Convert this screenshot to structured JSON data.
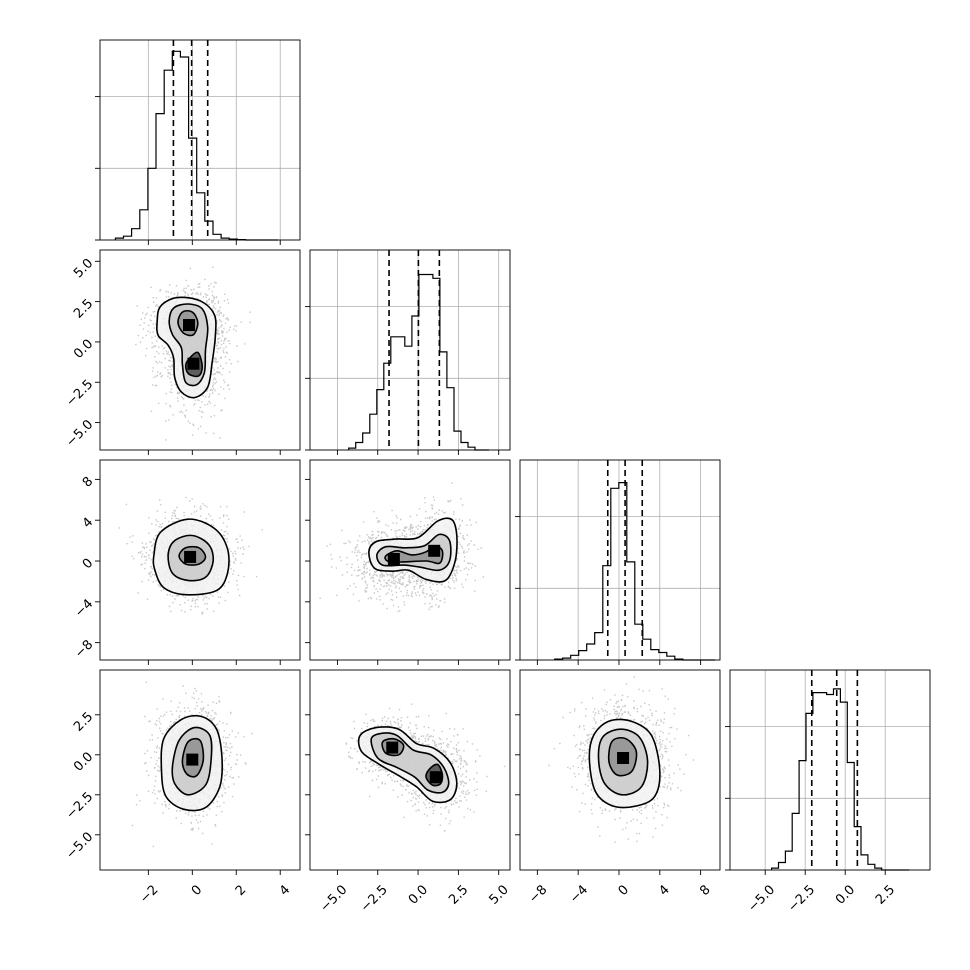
{
  "chart_data": {
    "type": "corner",
    "grid": true,
    "params": [
      {
        "range": [
          -4.2,
          4.9
        ],
        "ticks": [
          -2,
          0,
          2,
          4
        ],
        "tick_labels": [
          "−2",
          "0",
          "2",
          "4"
        ]
      },
      {
        "range": [
          -6.7,
          5.7
        ],
        "ticks": [
          -5.0,
          -2.5,
          0.0,
          2.5,
          5.0
        ],
        "tick_labels": [
          "−5.0",
          "−2.5",
          "0.0",
          "2.5",
          "5.0"
        ]
      },
      {
        "range": [
          -9.7,
          9.9
        ],
        "ticks": [
          -8,
          -4,
          0,
          4,
          8
        ],
        "tick_labels": [
          "−8",
          "−4",
          "0",
          "4",
          "8"
        ]
      },
      {
        "range": [
          -7.2,
          5.3
        ],
        "ticks": [
          -5.0,
          -2.5,
          0.0,
          2.5
        ],
        "tick_labels": [
          "−5.0",
          "−2.5",
          "0.0",
          "2.5"
        ]
      }
    ],
    "histograms": [
      {
        "param": 0,
        "range": [
          -3.5,
          3.9
        ],
        "counts": [
          0.01,
          0.02,
          0.06,
          0.16,
          0.38,
          0.67,
          0.9,
          1.0,
          0.97,
          0.54,
          0.25,
          0.1,
          0.03,
          0.01,
          0.005,
          0.002,
          0.0,
          0.0,
          0.0,
          0.0
        ],
        "quantiles": [
          -0.86,
          -0.03,
          0.7
        ]
      },
      {
        "param": 1,
        "range": [
          -4.3,
          4.4
        ],
        "counts": [
          0.01,
          0.04,
          0.09,
          0.19,
          0.32,
          0.46,
          0.6,
          0.6,
          0.55,
          0.71,
          0.93,
          0.93,
          0.91,
          0.52,
          0.33,
          0.1,
          0.04,
          0.015,
          0.0,
          0.0
        ],
        "quantiles": [
          -1.8,
          0.02,
          1.32
        ]
      },
      {
        "param": 2,
        "range": [
          -6.3,
          9.4
        ],
        "counts": [
          0.005,
          0.01,
          0.025,
          0.05,
          0.085,
          0.145,
          0.5,
          0.91,
          0.94,
          0.52,
          0.19,
          0.11,
          0.055,
          0.04,
          0.02,
          0.005,
          0.0,
          0.0,
          0.0,
          0.0
        ],
        "quantiles": [
          -1.1,
          0.6,
          2.28
        ]
      },
      {
        "param": 3,
        "range": [
          -4.6,
          4.0
        ],
        "counts": [
          0.01,
          0.04,
          0.1,
          0.3,
          0.58,
          0.83,
          0.94,
          0.94,
          0.93,
          0.96,
          0.89,
          0.57,
          0.23,
          0.08,
          0.03,
          0.01,
          0.0,
          0.0,
          0.0,
          0.0
        ],
        "quantiles": [
          -2.09,
          -0.53,
          0.76
        ]
      }
    ],
    "pairs": [
      {
        "x": 0,
        "y": 1,
        "blobs": [
          {
            "cx": -0.15,
            "cy": 1.05,
            "sx": 0.75,
            "sy": 1.1,
            "w": 0.55
          },
          {
            "cx": 0.05,
            "cy": -1.35,
            "sx": 0.65,
            "sy": 1.4,
            "w": 0.45
          }
        ],
        "contours": [
          [
            [
              -1.6,
              1.2
            ],
            [
              -1.45,
              2.2
            ],
            [
              -0.7,
              2.75
            ],
            [
              0.35,
              2.55
            ],
            [
              1.0,
              1.7
            ],
            [
              1.05,
              0.4
            ],
            [
              0.9,
              -1.3
            ],
            [
              0.7,
              -2.8
            ],
            [
              0.1,
              -3.45
            ],
            [
              -0.5,
              -3.1
            ],
            [
              -0.8,
              -2.2
            ],
            [
              -0.85,
              -1.0
            ],
            [
              -1.1,
              -0.2
            ],
            [
              -1.55,
              0.4
            ]
          ],
          [
            [
              -1.05,
              1.3
            ],
            [
              -0.85,
              2.1
            ],
            [
              -0.2,
              2.35
            ],
            [
              0.45,
              2.05
            ],
            [
              0.7,
              0.9
            ],
            [
              0.6,
              -0.5
            ],
            [
              0.55,
              -1.9
            ],
            [
              0.2,
              -2.65
            ],
            [
              -0.3,
              -2.5
            ],
            [
              -0.45,
              -1.4
            ],
            [
              -0.5,
              -0.35
            ],
            [
              -0.9,
              0.45
            ]
          ],
          [
            [
              -0.65,
              1.2
            ],
            [
              -0.45,
              1.85
            ],
            [
              0.0,
              1.85
            ],
            [
              0.25,
              1.2
            ],
            [
              0.05,
              0.45
            ],
            [
              -0.4,
              0.55
            ]
          ],
          [
            [
              -0.15,
              -1.05
            ],
            [
              0.25,
              -0.65
            ],
            [
              0.45,
              -1.5
            ],
            [
              0.3,
              -2.1
            ],
            [
              -0.15,
              -2.0
            ],
            [
              -0.3,
              -1.5
            ]
          ]
        ]
      },
      {
        "x": 0,
        "y": 2,
        "blobs": [
          {
            "cx": -0.1,
            "cy": 0.4,
            "sx": 0.8,
            "sy": 1.7,
            "w": 1.0
          }
        ],
        "contours": [
          [
            [
              -1.75,
              0.5
            ],
            [
              -1.45,
              2.8
            ],
            [
              -0.2,
              4.1
            ],
            [
              1.0,
              3.2
            ],
            [
              1.6,
              1.2
            ],
            [
              1.6,
              -1.2
            ],
            [
              1.1,
              -2.9
            ],
            [
              -0.3,
              -3.3
            ],
            [
              -1.3,
              -2.6
            ],
            [
              -1.7,
              -0.9
            ]
          ],
          [
            [
              -1.1,
              0.6
            ],
            [
              -0.8,
              2.0
            ],
            [
              0.0,
              2.5
            ],
            [
              0.75,
              1.6
            ],
            [
              0.95,
              0.0
            ],
            [
              0.6,
              -1.6
            ],
            [
              -0.2,
              -1.9
            ],
            [
              -0.9,
              -1.2
            ]
          ],
          [
            [
              -0.6,
              0.5
            ],
            [
              -0.3,
              1.3
            ],
            [
              0.3,
              1.3
            ],
            [
              0.6,
              0.4
            ],
            [
              0.3,
              -0.3
            ],
            [
              -0.3,
              -0.3
            ]
          ]
        ]
      },
      {
        "x": 0,
        "y": 3,
        "blobs": [
          {
            "cx": 0.0,
            "cy": -0.3,
            "sx": 0.7,
            "sy": 1.4,
            "w": 1.0
          }
        ],
        "contours": [
          [
            [
              -1.4,
              -1.0
            ],
            [
              -1.3,
              1.0
            ],
            [
              -0.5,
              2.2
            ],
            [
              0.4,
              2.4
            ],
            [
              1.1,
              1.6
            ],
            [
              1.35,
              -0.2
            ],
            [
              1.25,
              -2.0
            ],
            [
              0.6,
              -3.3
            ],
            [
              -0.4,
              -3.4
            ],
            [
              -1.2,
              -2.6
            ]
          ],
          [
            [
              -0.9,
              -0.7
            ],
            [
              -0.6,
              0.9
            ],
            [
              0.1,
              1.7
            ],
            [
              0.8,
              1.2
            ],
            [
              0.85,
              -0.4
            ],
            [
              0.6,
              -1.9
            ],
            [
              -0.2,
              -2.5
            ],
            [
              -0.8,
              -1.8
            ]
          ],
          [
            [
              -0.45,
              -0.4
            ],
            [
              -0.2,
              0.8
            ],
            [
              0.35,
              0.9
            ],
            [
              0.5,
              -0.3
            ],
            [
              0.2,
              -1.3
            ],
            [
              -0.25,
              -1.2
            ]
          ]
        ]
      },
      {
        "x": 1,
        "y": 2,
        "blobs": [
          {
            "cx": -1.5,
            "cy": 0.2,
            "sx": 1.2,
            "sy": 1.5,
            "w": 0.5
          },
          {
            "cx": 1.0,
            "cy": 1.0,
            "sx": 0.9,
            "sy": 1.8,
            "w": 0.5
          }
        ],
        "contours": [
          [
            [
              -3.05,
              0.9
            ],
            [
              -2.6,
              1.9
            ],
            [
              -1.4,
              2.15
            ],
            [
              0.0,
              2.3
            ],
            [
              1.2,
              3.9
            ],
            [
              2.1,
              4.05
            ],
            [
              2.4,
              2.5
            ],
            [
              2.3,
              0.0
            ],
            [
              1.7,
              -1.9
            ],
            [
              0.5,
              -1.8
            ],
            [
              -0.6,
              -0.9
            ],
            [
              -1.6,
              -1.0
            ],
            [
              -2.7,
              -0.7
            ]
          ],
          [
            [
              -2.55,
              0.6
            ],
            [
              -2.0,
              1.4
            ],
            [
              -0.8,
              1.3
            ],
            [
              0.4,
              1.5
            ],
            [
              1.3,
              2.6
            ],
            [
              1.95,
              2.0
            ],
            [
              1.95,
              0.0
            ],
            [
              1.3,
              -0.9
            ],
            [
              0.1,
              -0.6
            ],
            [
              -0.9,
              -0.4
            ],
            [
              -2.2,
              -0.4
            ]
          ],
          [
            [
              -2.0,
              0.5
            ],
            [
              -1.3,
              1.0
            ],
            [
              -0.4,
              0.6
            ],
            [
              0.5,
              0.9
            ],
            [
              1.0,
              1.5
            ],
            [
              1.5,
              1.0
            ],
            [
              1.35,
              -0.2
            ],
            [
              0.5,
              0.0
            ],
            [
              -1.2,
              -0.1
            ],
            [
              -1.9,
              0.0
            ]
          ]
        ]
      },
      {
        "x": 1,
        "y": 3,
        "blobs": [
          {
            "cx": -1.6,
            "cy": 0.45,
            "sx": 1.0,
            "sy": 0.8,
            "w": 0.5
          },
          {
            "cx": 1.1,
            "cy": -1.4,
            "sx": 0.9,
            "sy": 1.0,
            "w": 0.5
          }
        ],
        "contours": [
          [
            [
              -3.6,
              1.2
            ],
            [
              -2.6,
              1.7
            ],
            [
              -1.2,
              1.6
            ],
            [
              -0.1,
              0.7
            ],
            [
              1.0,
              0.4
            ],
            [
              2.0,
              -0.5
            ],
            [
              2.4,
              -1.8
            ],
            [
              2.0,
              -2.8
            ],
            [
              0.9,
              -2.9
            ],
            [
              -0.1,
              -2.0
            ],
            [
              -1.2,
              -1.3
            ],
            [
              -2.4,
              -0.6
            ],
            [
              -3.5,
              0.2
            ]
          ],
          [
            [
              -2.9,
              1.0
            ],
            [
              -2.2,
              1.35
            ],
            [
              -1.3,
              1.2
            ],
            [
              -0.3,
              0.3
            ],
            [
              0.8,
              0.0
            ],
            [
              1.6,
              -0.8
            ],
            [
              1.9,
              -1.8
            ],
            [
              1.5,
              -2.35
            ],
            [
              0.6,
              -2.2
            ],
            [
              -0.2,
              -1.4
            ],
            [
              -1.3,
              -0.8
            ],
            [
              -2.5,
              -0.2
            ]
          ],
          [
            [
              -2.2,
              0.8
            ],
            [
              -1.5,
              1.0
            ],
            [
              -0.9,
              0.6
            ],
            [
              -1.2,
              0.0
            ],
            [
              -2.0,
              0.1
            ]
          ],
          [
            [
              0.7,
              -0.9
            ],
            [
              1.2,
              -0.6
            ],
            [
              1.5,
              -1.2
            ],
            [
              1.4,
              -1.8
            ],
            [
              0.9,
              -1.9
            ],
            [
              0.5,
              -1.4
            ]
          ]
        ]
      },
      {
        "x": 2,
        "y": 3,
        "blobs": [
          {
            "cx": 0.4,
            "cy": -0.2,
            "sx": 1.8,
            "sy": 1.4,
            "w": 1.0
          }
        ],
        "contours": [
          [
            [
              -2.9,
              -0.3
            ],
            [
              -2.5,
              1.2
            ],
            [
              -1.0,
              2.1
            ],
            [
              1.2,
              2.1
            ],
            [
              3.2,
              1.2
            ],
            [
              4.0,
              -1.0
            ],
            [
              3.5,
              -2.6
            ],
            [
              1.7,
              -3.2
            ],
            [
              -0.6,
              -3.2
            ],
            [
              -2.3,
              -2.3
            ]
          ],
          [
            [
              -2.0,
              -0.3
            ],
            [
              -1.6,
              1.1
            ],
            [
              0.2,
              1.6
            ],
            [
              2.0,
              1.1
            ],
            [
              2.8,
              -0.4
            ],
            [
              2.2,
              -2.0
            ],
            [
              0.3,
              -2.5
            ],
            [
              -1.4,
              -1.8
            ]
          ],
          [
            [
              -1.0,
              0.0
            ],
            [
              -0.6,
              0.9
            ],
            [
              0.7,
              1.0
            ],
            [
              1.7,
              0.2
            ],
            [
              1.3,
              -1.0
            ],
            [
              0.0,
              -1.3
            ],
            [
              -0.8,
              -0.8
            ]
          ]
        ]
      }
    ]
  }
}
